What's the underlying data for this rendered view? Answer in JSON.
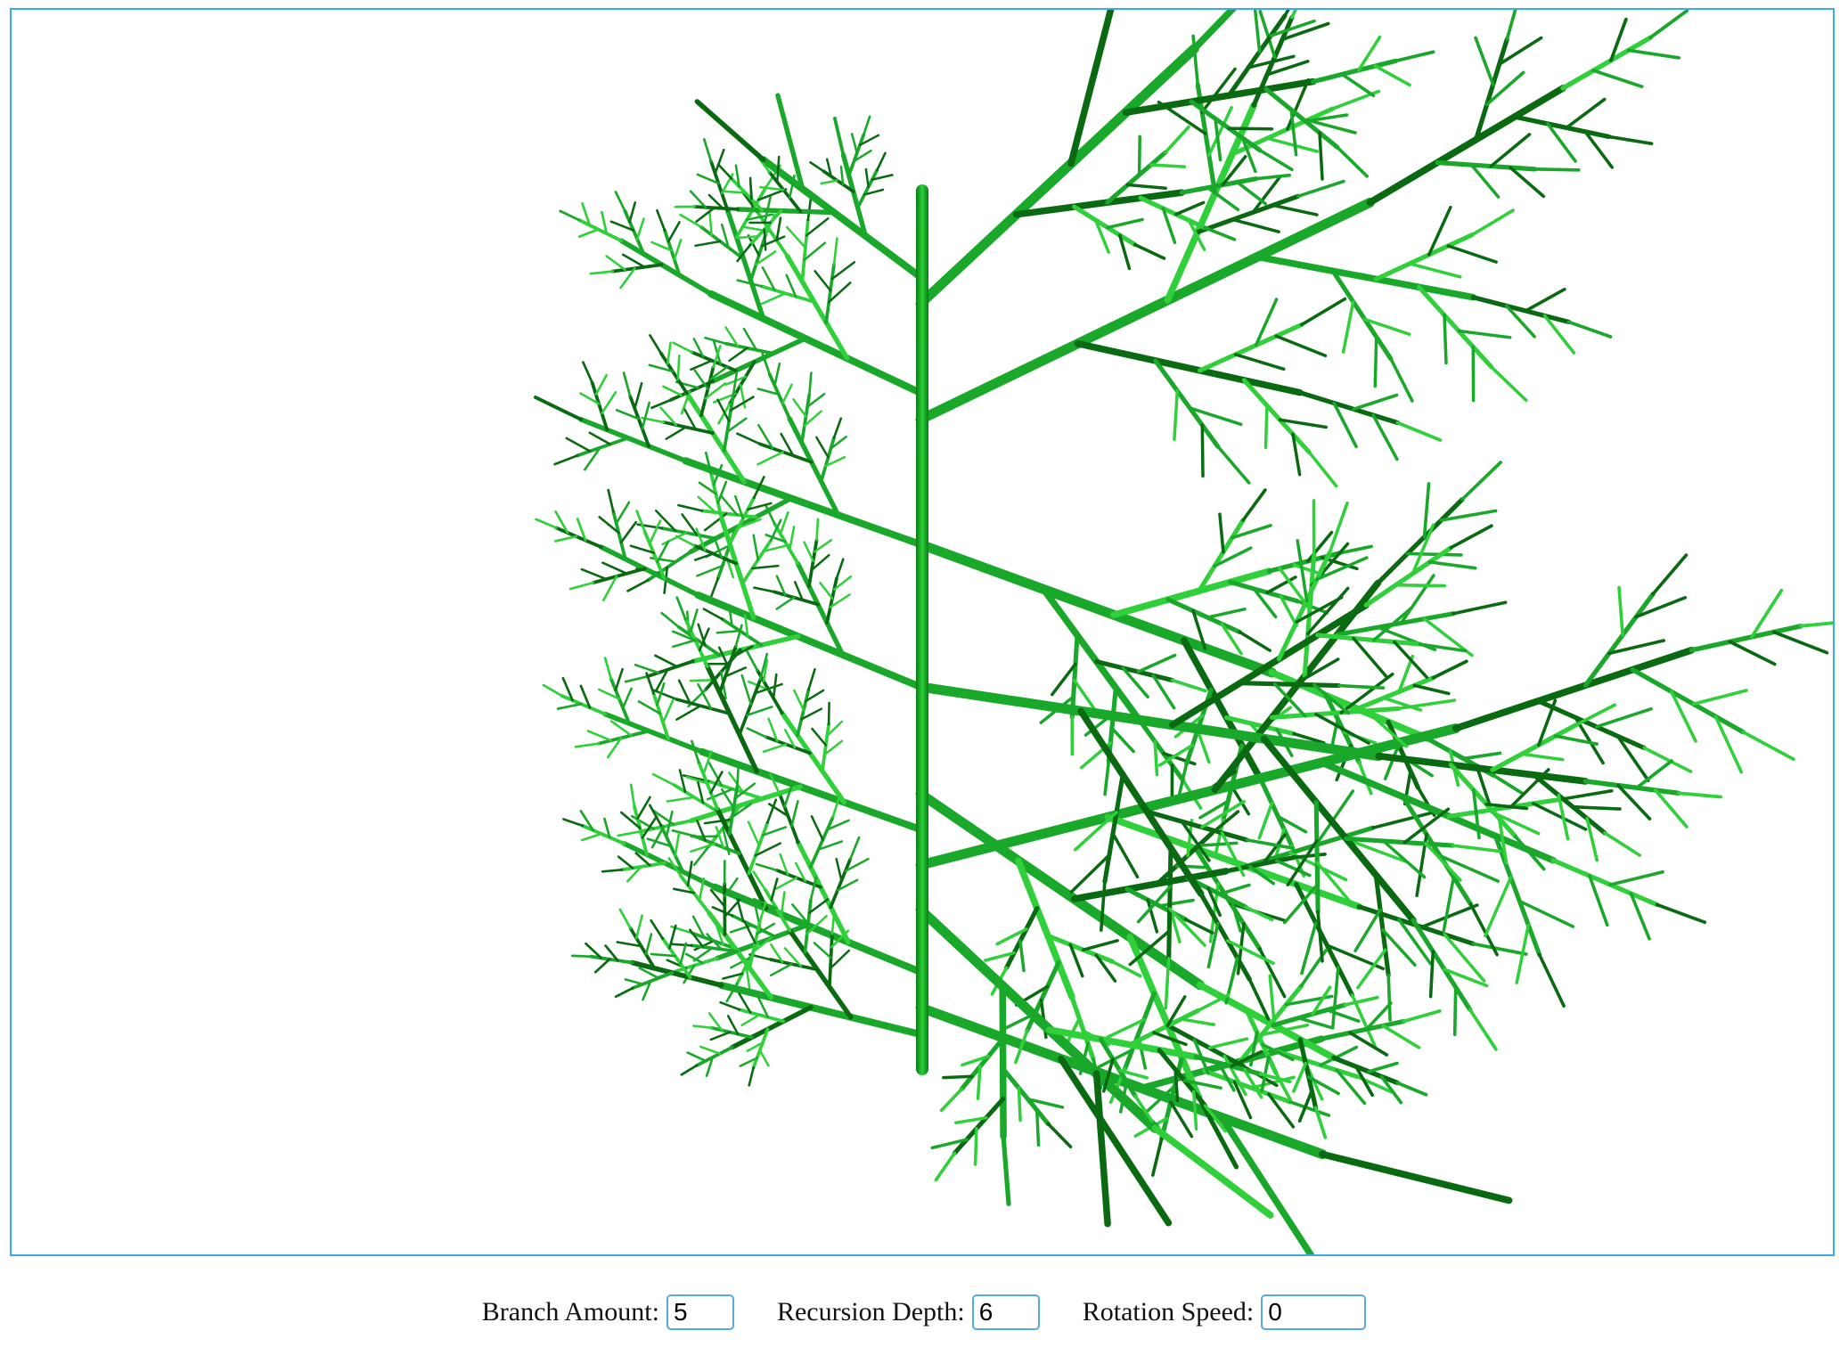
{
  "scene": {
    "subject": "3d-fractal-tree",
    "colors": {
      "branch_light": "#2fd03a",
      "branch_mid": "#1aa82a",
      "branch_dark": "#0a6a12",
      "border": "#36aee4"
    }
  },
  "controls": {
    "branch_amount": {
      "label": "Branch Amount:",
      "value": "5"
    },
    "recursion_depth": {
      "label": "Recursion Depth:",
      "value": "6"
    },
    "rotation_speed": {
      "label": "Rotation Speed:",
      "value": "0"
    }
  }
}
